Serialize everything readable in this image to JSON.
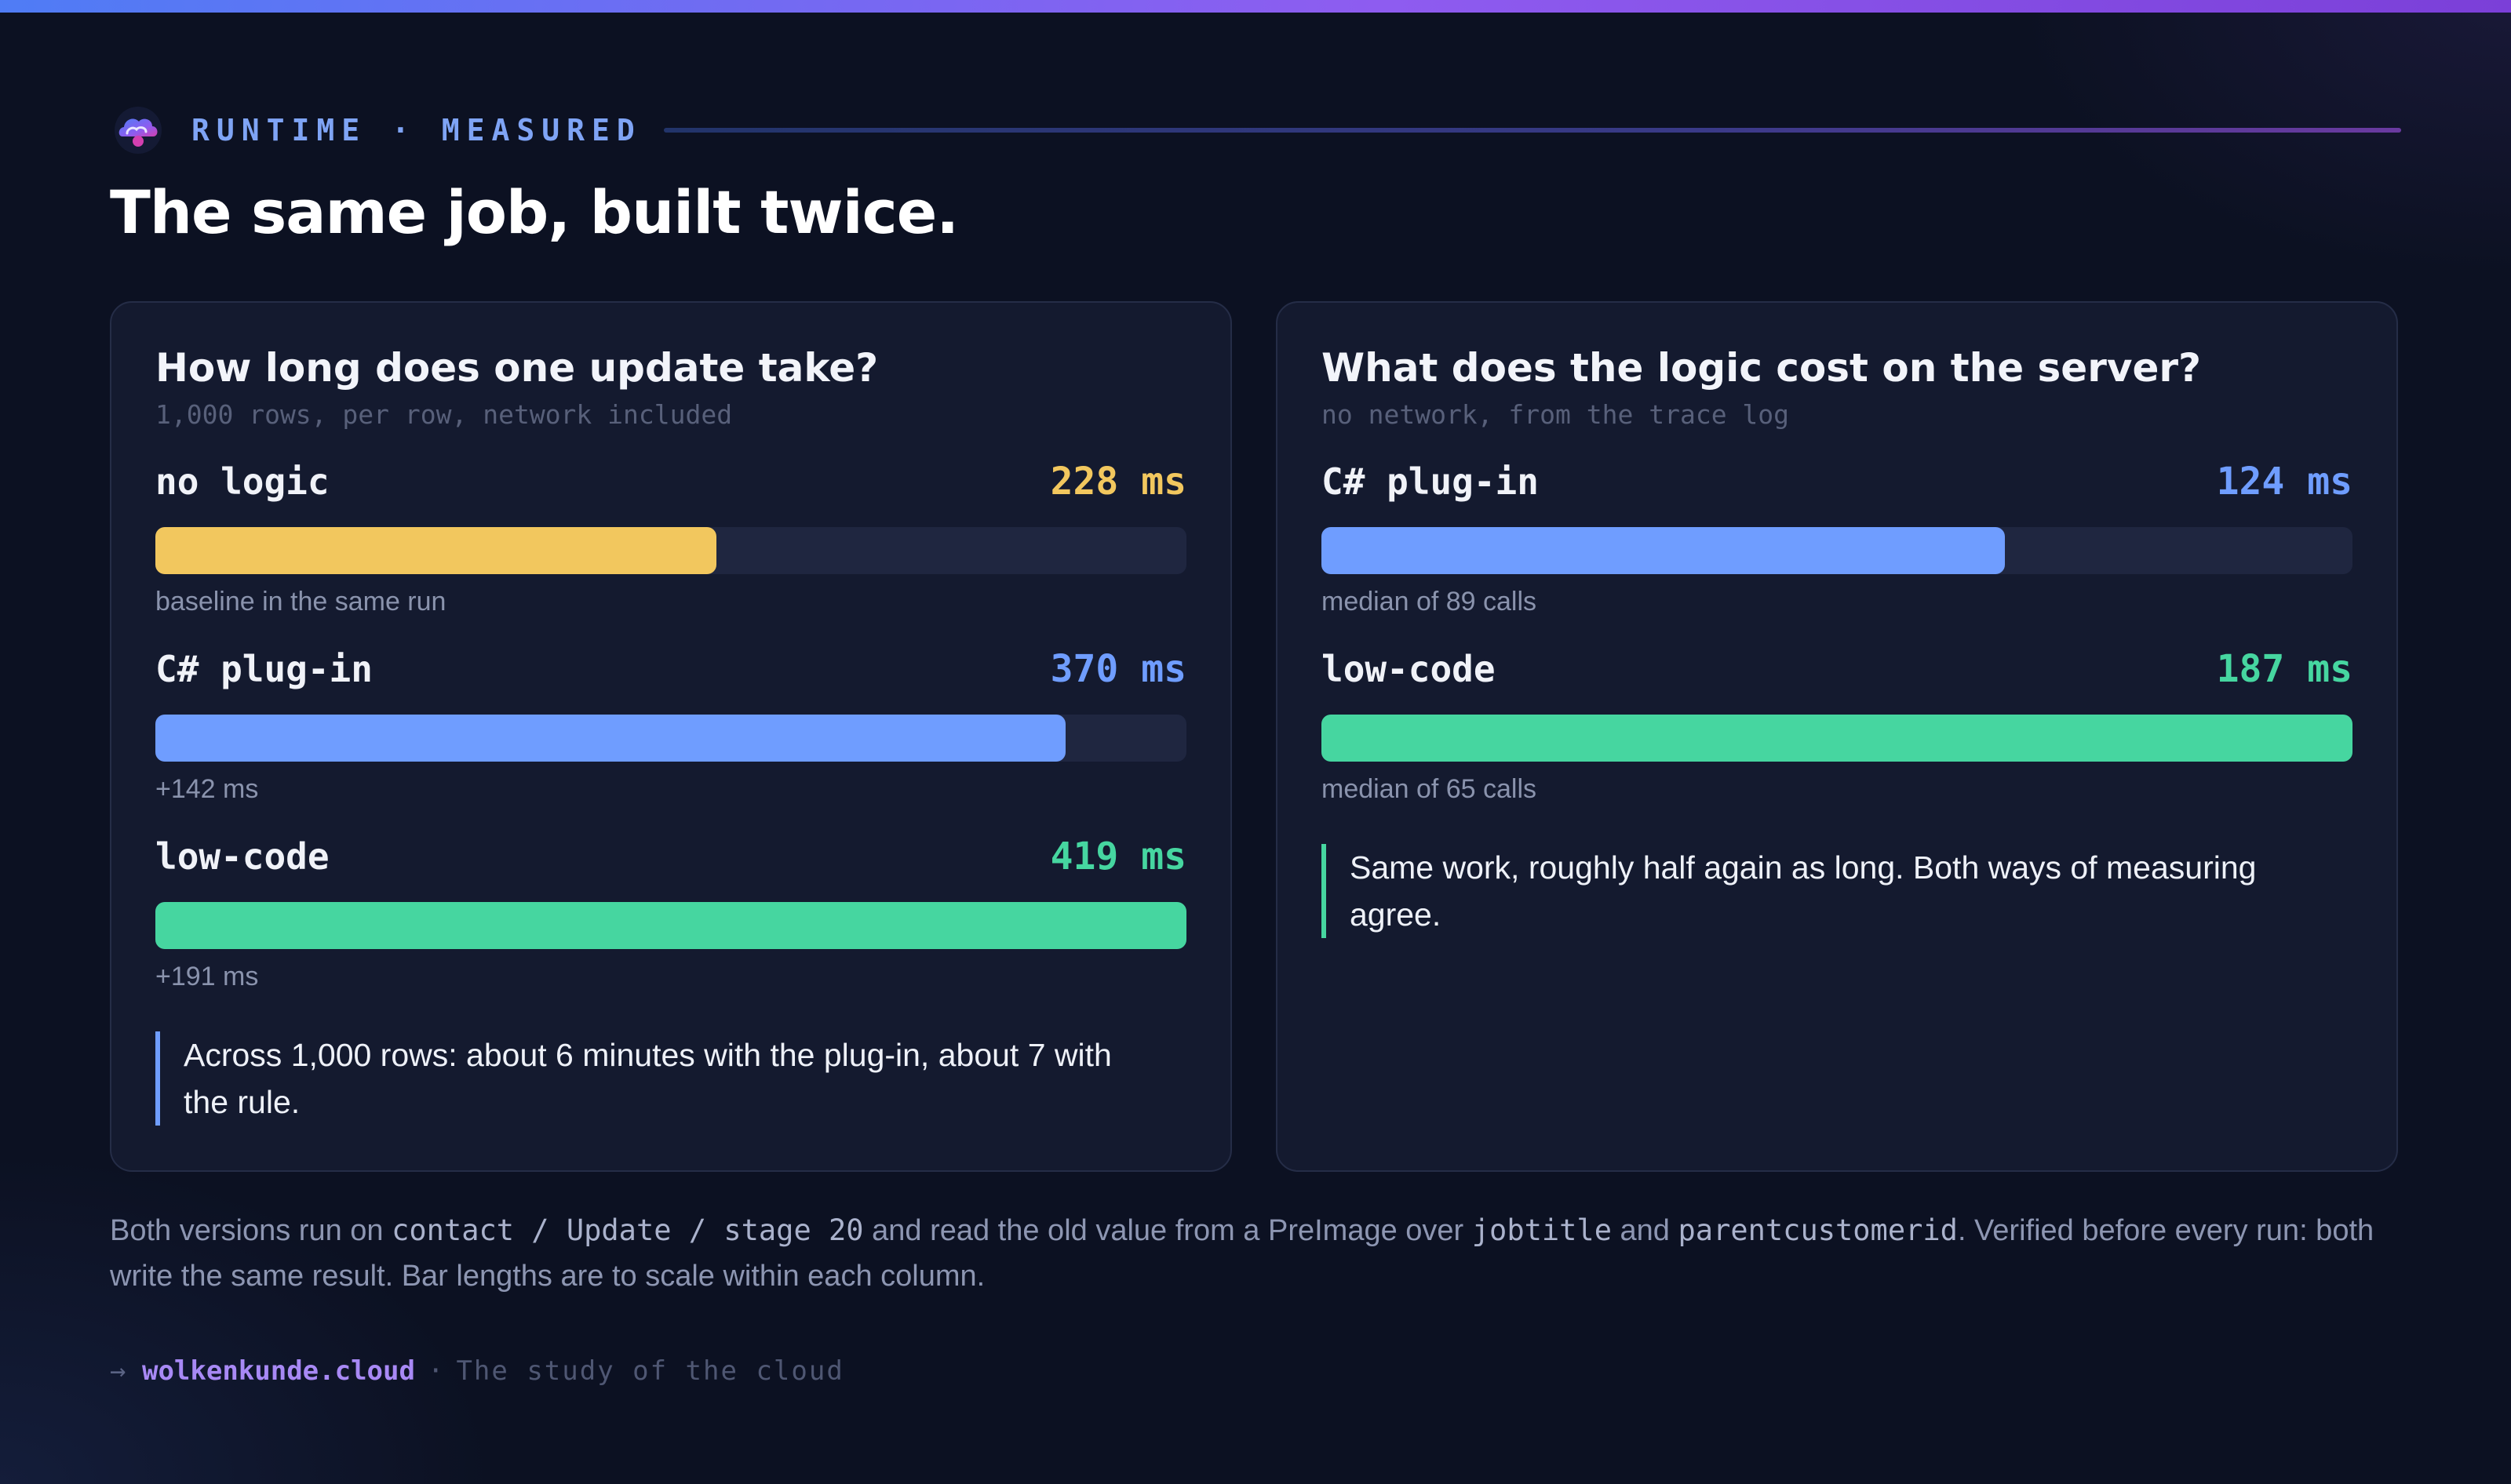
{
  "kicker": "RUNTIME · MEASURED",
  "headline": "The same job, built twice.",
  "colors": {
    "baseline": "#f2c75e",
    "plugin": "#6f9dff",
    "lowcode": "#46d6a0",
    "accent_blue": "#7fa4f5",
    "accent_purple": "#a889f5"
  },
  "chart_data": [
    {
      "type": "bar",
      "title": "How long does one update take?",
      "subtitle": "1,000 rows, per row, network included",
      "unit": "ms",
      "categories": [
        "no logic",
        "C# plug-in",
        "low-code"
      ],
      "values": [
        228,
        370,
        419
      ],
      "value_labels": [
        "228 ms",
        "370 ms",
        "419 ms"
      ],
      "notes": [
        "baseline in the same run",
        "+142 ms",
        "+191 ms"
      ],
      "colors": [
        "#f2c75e",
        "#6f9dff",
        "#46d6a0"
      ],
      "xlim": [
        0,
        419
      ],
      "callout": "Across 1,000 rows: about 6 minutes with the plug-in, about 7 with the rule.",
      "callout_color": "#6f9dff"
    },
    {
      "type": "bar",
      "title": "What does the logic cost on the server?",
      "subtitle": "no network, from the trace log",
      "unit": "ms",
      "categories": [
        "C# plug-in",
        "low-code"
      ],
      "values": [
        124,
        187
      ],
      "value_labels": [
        "124 ms",
        "187 ms"
      ],
      "notes": [
        "median of 89 calls",
        "median of 65 calls"
      ],
      "colors": [
        "#6f9dff",
        "#46d6a0"
      ],
      "xlim": [
        0,
        187
      ],
      "callout": "Same work, roughly half again as long. Both ways of measuring agree.",
      "callout_color": "#46d6a0"
    }
  ],
  "footnote": {
    "t1": "Both versions run on ",
    "c1": "contact / Update / stage 20",
    "t2": " and read the old value from a PreImage over ",
    "c2": "jobtitle",
    "t3": " and ",
    "c3": "parentcustomerid",
    "t4": ". Verified before every run: both write the same result. Bar lengths are to scale within each column."
  },
  "source": {
    "arrow": "→",
    "link": "wolkenkunde.cloud",
    "sep": "·",
    "tagline": "The study of the cloud"
  }
}
